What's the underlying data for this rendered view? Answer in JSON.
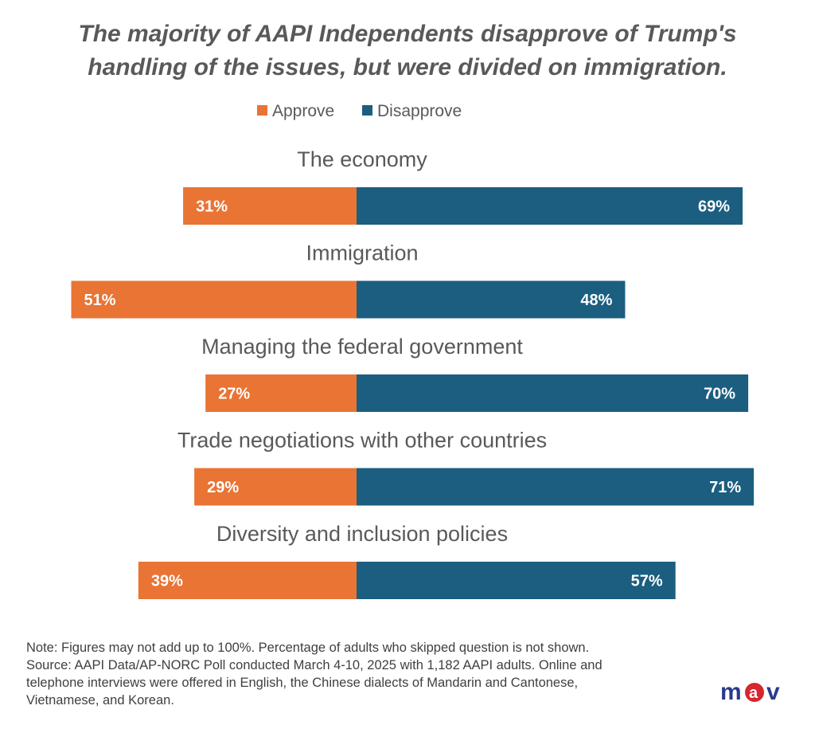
{
  "title_lines": [
    "The majority of AAPI Independents disapprove of  Trump's",
    "handling of the issues, but were divided on immigration."
  ],
  "colors": {
    "approve": "#E97434",
    "disapprove": "#1B5E80",
    "text": "#595959"
  },
  "chart_data": {
    "type": "bar",
    "orientation": "horizontal-diverging",
    "categories": [
      "The economy",
      "Immigration",
      "Managing the federal government",
      "Trade negotiations with other countries",
      "Diversity and inclusion policies"
    ],
    "series": [
      {
        "name": "Approve",
        "values": [
          31,
          51,
          27,
          29,
          39
        ],
        "labels": [
          "31%",
          "51%",
          "27%",
          "29%",
          "39%"
        ]
      },
      {
        "name": "Disapprove",
        "values": [
          69,
          48,
          70,
          71,
          57
        ],
        "labels": [
          "69%",
          "48%",
          "70%",
          "71%",
          "57%"
        ]
      }
    ],
    "legend": "top-center",
    "grid": false
  },
  "note_lines": [
    "Note: Figures may not add up to 100%. Percentage of adults who skipped  question is not shown.",
    "Source: AAPI Data/AP-NORC Poll conducted March 4-10, 2025 with 1,182 AAPI adults. Online and",
    "telephone interviews were offered in English, the Chinese dialects of Mandarin and Cantonese,",
    "Vietnamese, and Korean."
  ],
  "logo_text": "mav"
}
